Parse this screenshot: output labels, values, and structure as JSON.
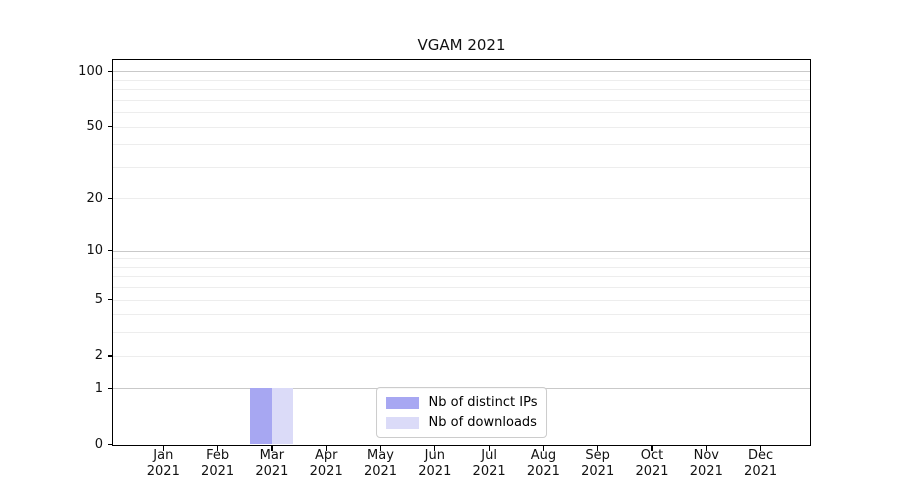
{
  "chart_data": {
    "type": "bar",
    "title": "VGAM 2021",
    "categories": [
      "Jan 2021",
      "Feb 2021",
      "Mar 2021",
      "Apr 2021",
      "May 2021",
      "Jun 2021",
      "Jul 2021",
      "Aug 2021",
      "Sep 2021",
      "Oct 2021",
      "Nov 2021",
      "Dec 2021"
    ],
    "series": [
      {
        "id": "distinct-ips",
        "name": "Nb of distinct IPs",
        "color": "#a7a7f2",
        "values": [
          0,
          0,
          1,
          0,
          0,
          0,
          0,
          0,
          0,
          0,
          0,
          0
        ]
      },
      {
        "id": "downloads",
        "name": "Nb of downloads",
        "color": "#dbdbf8",
        "values": [
          0,
          0,
          1,
          0,
          0,
          0,
          0,
          0,
          0,
          0,
          0,
          0
        ]
      }
    ],
    "yscale": "log1p",
    "ylim": [
      0,
      115
    ],
    "y_axis": {
      "ticks": [
        {
          "value": 0,
          "label": "0"
        },
        {
          "value": 1,
          "label": "1"
        },
        {
          "value": 2,
          "label": "2"
        },
        {
          "value": 5,
          "label": "5"
        },
        {
          "value": 10,
          "label": "10"
        },
        {
          "value": 20,
          "label": "20"
        },
        {
          "value": 50,
          "label": "50"
        },
        {
          "value": 100,
          "label": "100"
        }
      ]
    },
    "grid": {
      "orientation": "horizontal",
      "major_values": [
        1,
        10,
        100
      ],
      "minor_values": [
        2,
        3,
        4,
        5,
        6,
        7,
        8,
        9,
        20,
        30,
        40,
        50,
        60,
        70,
        80,
        90
      ]
    },
    "colors": {
      "major_grid": "#c9c9c9",
      "minor_grid": "#ededed",
      "axis": "#000000",
      "tick_label": "#111111"
    },
    "legend_position": "lower center"
  }
}
